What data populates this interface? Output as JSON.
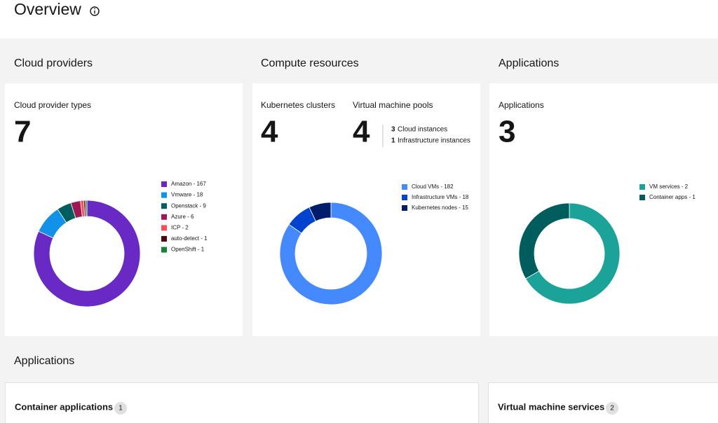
{
  "header": {
    "title": "Overview"
  },
  "cloud_providers": {
    "section_title": "Cloud providers",
    "metric_label": "Cloud provider types",
    "metric_value": 7,
    "donut": {
      "segments": [
        {
          "label": "Amazon - 167",
          "value": 167,
          "color": "#6929c4"
        },
        {
          "label": "Vmware - 18",
          "value": 18,
          "color": "#1192e8"
        },
        {
          "label": "Openstack - 9",
          "value": 9,
          "color": "#005d5d"
        },
        {
          "label": "Azure - 6",
          "value": 6,
          "color": "#9f1853"
        },
        {
          "label": "ICP - 2",
          "value": 2,
          "color": "#fa4d56"
        },
        {
          "label": "auto-detect - 1",
          "value": 1,
          "color": "#570408"
        },
        {
          "label": "OpenShift - 1",
          "value": 1,
          "color": "#198038"
        }
      ]
    }
  },
  "compute_resources": {
    "section_title": "Compute resources",
    "kubernetes": {
      "label": "Kubernetes clusters",
      "value": 4
    },
    "vm_pools": {
      "label": "Virtual machine pools",
      "value": 4,
      "details": [
        {
          "count": 3,
          "text": "Cloud instances"
        },
        {
          "count": 1,
          "text": "Infrastructure instances"
        }
      ]
    },
    "donut": {
      "segments": [
        {
          "label": "Cloud VMs - 182",
          "value": 182,
          "color": "#4589ff"
        },
        {
          "label": "Infrastructure VMs - 18",
          "value": 18,
          "color": "#0043ce"
        },
        {
          "label": "Kubernetes nodes - 15",
          "value": 15,
          "color": "#001d6c"
        }
      ]
    }
  },
  "applications": {
    "section_title": "Applications",
    "metric_label": "Applications",
    "metric_value": 3,
    "donut": {
      "segments": [
        {
          "label": "VM services - 2",
          "value": 2,
          "color": "#1ba39a"
        },
        {
          "label": "Container apps - 1",
          "value": 1,
          "color": "#005d5d"
        }
      ]
    }
  },
  "applications_list": {
    "section_title": "Applications",
    "cards": [
      {
        "title": "Container applications",
        "badge": 1
      },
      {
        "title": "Virtual machine services",
        "badge": 2
      }
    ]
  }
}
